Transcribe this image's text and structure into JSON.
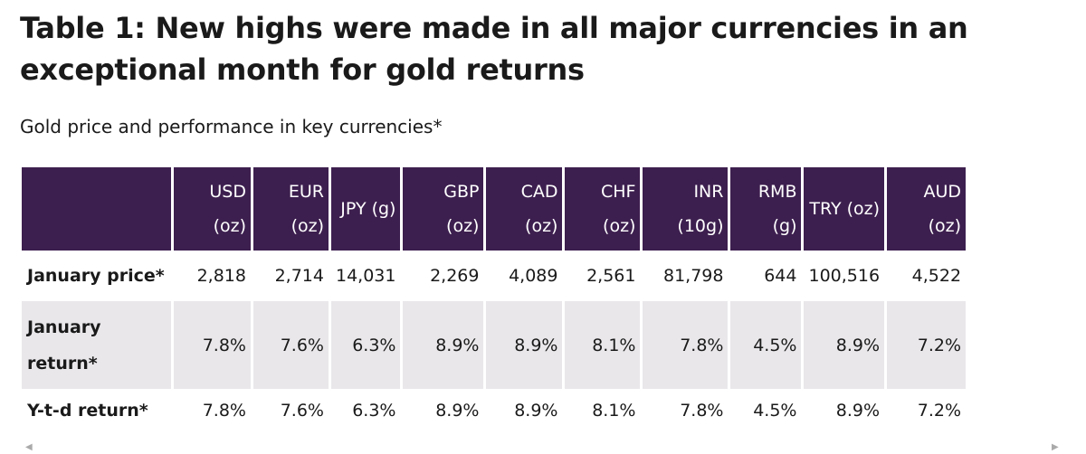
{
  "title": "Table 1: New highs were made in all major currencies in an exceptional month for gold returns",
  "subtitle": "Gold price and performance in key currencies*",
  "table": {
    "header": [
      [
        "USD",
        "(oz)"
      ],
      [
        "EUR",
        "(oz)"
      ],
      [
        "JPY (g)"
      ],
      [
        "GBP",
        "(oz)"
      ],
      [
        "CAD",
        "(oz)"
      ],
      [
        "CHF",
        "(oz)"
      ],
      [
        "INR",
        "(10g)"
      ],
      [
        "RMB",
        "(g)"
      ],
      [
        "TRY (oz)"
      ],
      [
        "AUD",
        "(oz)"
      ]
    ],
    "rows": [
      {
        "label": "January price*",
        "values": [
          "2,818",
          "2,714",
          "14,031",
          "2,269",
          "4,089",
          "2,561",
          "81,798",
          "644",
          "100,516",
          "4,522"
        ]
      },
      {
        "label": "January return*",
        "values": [
          "7.8%",
          "7.6%",
          "6.3%",
          "8.9%",
          "8.9%",
          "8.1%",
          "7.8%",
          "4.5%",
          "8.9%",
          "7.2%"
        ]
      },
      {
        "label": "Y-t-d return*",
        "values": [
          "7.8%",
          "7.6%",
          "6.3%",
          "8.9%",
          "8.9%",
          "8.1%",
          "7.8%",
          "4.5%",
          "8.9%",
          "7.2%"
        ]
      }
    ]
  }
}
